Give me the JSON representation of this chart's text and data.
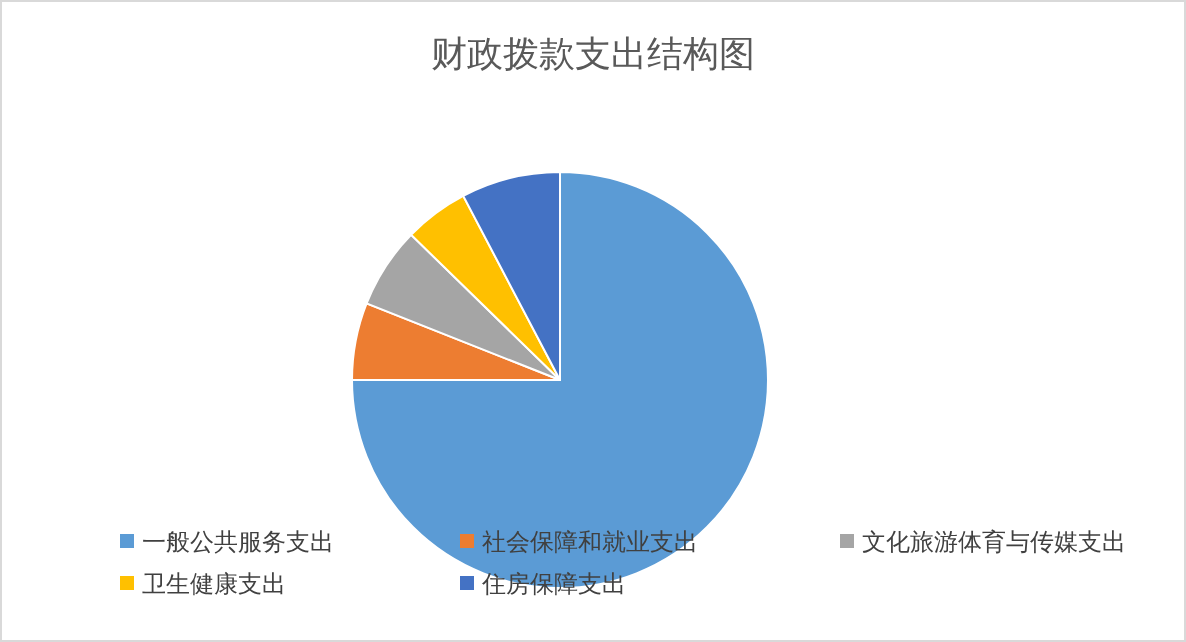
{
  "chart_data": {
    "type": "pie",
    "title": "财政拨款支出结构图",
    "categories": [
      "一般公共服务支出",
      "社会保障和就业支出",
      "文化旅游体育与传媒支出",
      "卫生健康支出",
      "住房保障支出"
    ],
    "values": [
      75,
      6,
      6.3,
      5,
      7.7
    ],
    "colors": [
      "#5b9bd5",
      "#ed7d31",
      "#a5a5a5",
      "#ffc000",
      "#4472c4"
    ],
    "legend": "bottom"
  }
}
